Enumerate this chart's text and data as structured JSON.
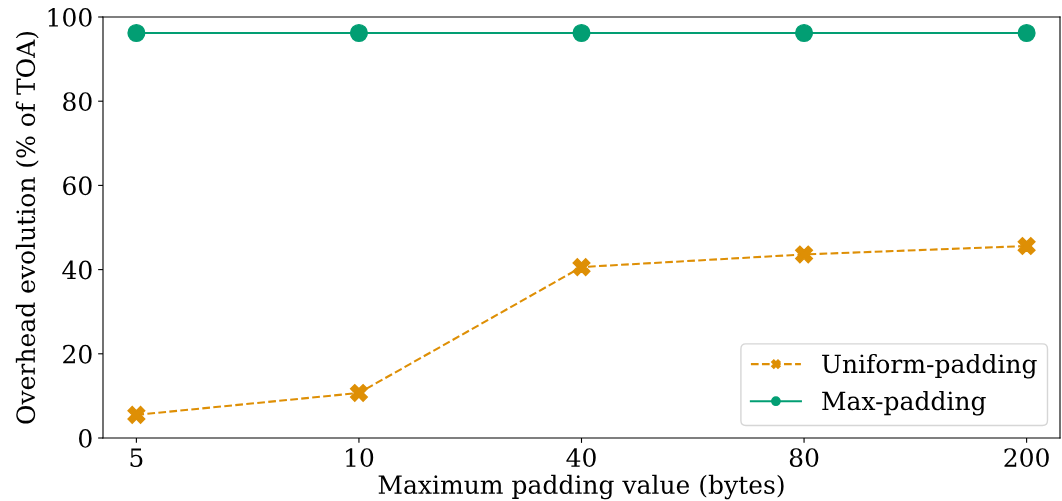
{
  "chart_data": {
    "type": "line",
    "xlabel": "Maximum padding value (bytes)",
    "ylabel": "Overhead evolution (% of TOA)",
    "categories": [
      "5",
      "10",
      "40",
      "80",
      "200"
    ],
    "series": [
      {
        "name": "Uniform-padding",
        "color": "#de8f05",
        "values": [
          5.5,
          10.7,
          40.6,
          43.6,
          45.6
        ],
        "marker": "cross",
        "line_style": "dashed"
      },
      {
        "name": "Max-padding",
        "color": "#029e73",
        "values": [
          96.2,
          96.2,
          96.2,
          96.2,
          96.2
        ],
        "marker": "circle",
        "line_style": "solid"
      }
    ],
    "ylim": [
      0,
      100
    ],
    "yticks": [
      0,
      20,
      40,
      60,
      80,
      100
    ],
    "grid": false,
    "legend": "bottom right"
  }
}
